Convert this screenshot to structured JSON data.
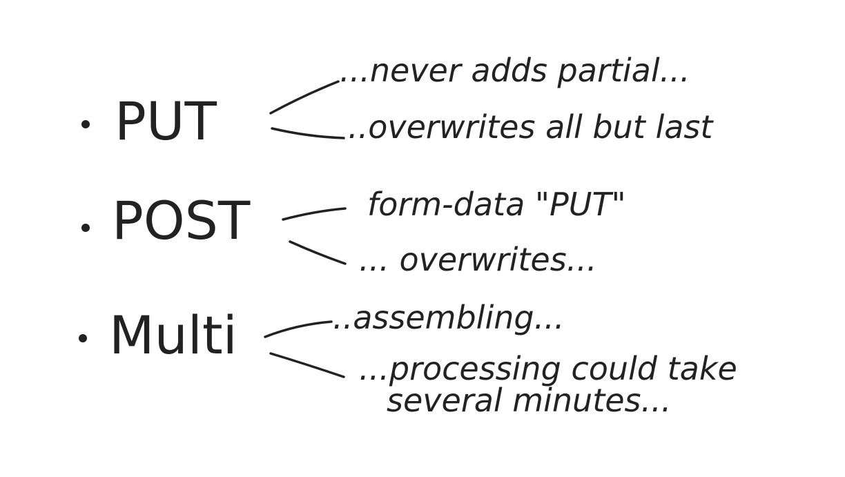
{
  "colors": {
    "ink": "#222222",
    "paper": "#ffffff"
  },
  "items": [
    {
      "term": "PUT",
      "notes": [
        "...never adds partial...",
        "..overwrites all but last"
      ]
    },
    {
      "term": "POST",
      "notes": [
        "form-data \"PUT\"",
        "... overwrites..."
      ]
    },
    {
      "term": "Multi",
      "notes": [
        "..assembling...",
        "...processing could take",
        "several  minutes..."
      ]
    }
  ]
}
